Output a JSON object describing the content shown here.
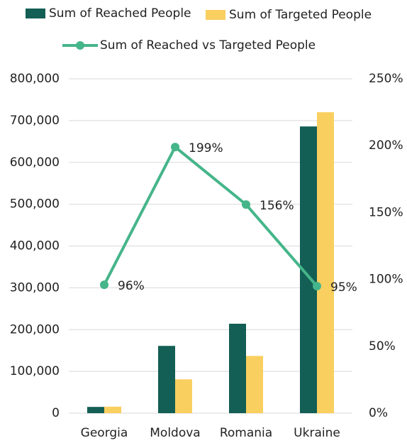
{
  "chart_data": {
    "type": "bar-line",
    "categories": [
      "Georgia",
      "Moldova",
      "Romania",
      "Ukraine"
    ],
    "series": [
      {
        "name": "Sum of Reached People",
        "color": "#135e55",
        "type": "bar",
        "values": [
          15000,
          161000,
          214000,
          686000
        ]
      },
      {
        "name": "Sum of Targeted People",
        "color": "#f9cf5f",
        "type": "bar",
        "values": [
          15600,
          81000,
          137000,
          720000
        ]
      },
      {
        "name": "Sum of Reached vs Targeted People",
        "color": "#45b58a",
        "type": "line",
        "axis": "y2",
        "values": [
          96,
          199,
          156,
          95
        ],
        "value_labels": [
          "96%",
          "199%",
          "156%",
          "95%"
        ]
      }
    ],
    "ylim": [
      0,
      800000
    ],
    "yticks": [
      0,
      {
        "value": 100000,
        "label": "100,000"
      },
      {
        "value": 200000,
        "label": "200,000"
      },
      {
        "value": 300000,
        "label": "300,000"
      },
      {
        "value": 400000,
        "label": "400,000"
      },
      {
        "value": 500000,
        "label": "500,000"
      },
      {
        "value": 600000,
        "label": "600,000"
      },
      {
        "value": 700000,
        "label": "700,000"
      },
      {
        "value": 800000,
        "label": "800,000"
      }
    ],
    "y2lim": [
      0,
      250
    ],
    "y2ticks": [
      {
        "value": 0,
        "label": "0%"
      },
      {
        "value": 50,
        "label": "50%"
      },
      {
        "value": 100,
        "label": "100%"
      },
      {
        "value": 150,
        "label": "150%"
      },
      {
        "value": 200,
        "label": "200%"
      },
      {
        "value": 250,
        "label": "250%"
      }
    ],
    "grid": true
  }
}
